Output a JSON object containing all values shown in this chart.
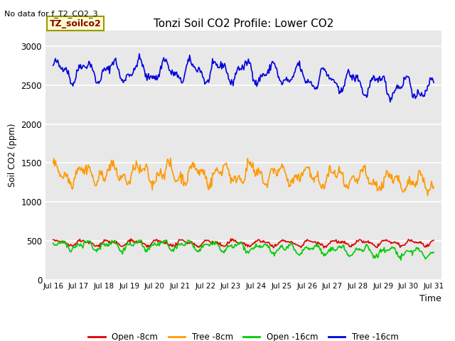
{
  "title": "Tonzi Soil CO2 Profile: Lower CO2",
  "top_left_note": "No data for f_T2_CO2_3",
  "ylabel": "Soil CO2 (ppm)",
  "xlabel": "Time",
  "legend_box_label": "TZ_soilco2",
  "ylim": [
    0,
    3200
  ],
  "yticks": [
    0,
    500,
    1000,
    1500,
    2000,
    2500,
    3000
  ],
  "fig_bg_color": "#ffffff",
  "plot_bg_color": "#e8e8e8",
  "line_colors": {
    "open_8cm": "#dd0000",
    "tree_8cm": "#ff9900",
    "open_16cm": "#00cc00",
    "tree_16cm": "#0000dd"
  },
  "legend_entries": [
    "Open -8cm",
    "Tree -8cm",
    "Open -16cm",
    "Tree -16cm"
  ],
  "x_tick_labels": [
    "Jul 16",
    "Jul 17",
    "Jul 18",
    "Jul 19",
    "Jul 20",
    "Jul 21",
    "Jul 22",
    "Jul 23",
    "Jul 24",
    "Jul 25",
    "Jul 26",
    "Jul 27",
    "Jul 28",
    "Jul 29",
    "Jul 30",
    "Jul 31"
  ],
  "n_points": 500,
  "days": 15
}
